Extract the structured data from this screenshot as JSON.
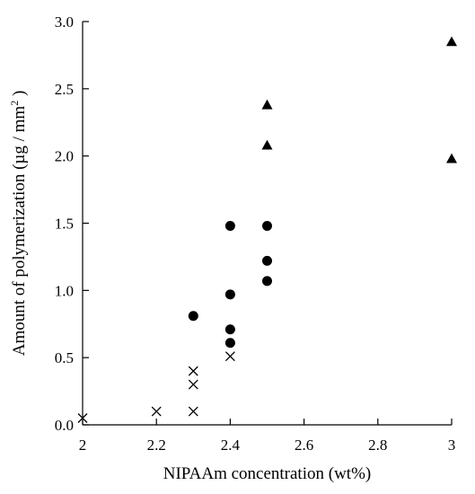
{
  "chart_data": {
    "type": "scatter",
    "title": "",
    "xlabel": "NIPAAm concentration (wt%)",
    "ylabel_main": "Amount of polymerization (µg / mm",
    "ylabel_sup": "2",
    "ylabel_end": " )",
    "xlim": [
      2,
      3
    ],
    "ylim": [
      0,
      3
    ],
    "x_ticks": [
      2,
      2.2,
      2.4,
      2.6,
      2.8,
      3
    ],
    "x_tick_labels": [
      "2",
      "2.2",
      "2.4",
      "2.6",
      "2.8",
      "3"
    ],
    "y_ticks": [
      0,
      0.5,
      1,
      1.5,
      2,
      2.5,
      3
    ],
    "y_tick_labels": [
      "0.0",
      "0.5",
      "1.0",
      "1.5",
      "2.0",
      "2.5",
      "3.0"
    ],
    "grid": false,
    "legend": "none",
    "series": [
      {
        "marker": "cross",
        "color": "#000000",
        "points": [
          {
            "x": 2.0,
            "y": 0.05
          },
          {
            "x": 2.2,
            "y": 0.1
          },
          {
            "x": 2.3,
            "y": 0.1
          },
          {
            "x": 2.3,
            "y": 0.3
          },
          {
            "x": 2.3,
            "y": 0.4
          },
          {
            "x": 2.4,
            "y": 0.51
          }
        ]
      },
      {
        "marker": "circle",
        "color": "#000000",
        "points": [
          {
            "x": 2.3,
            "y": 0.81
          },
          {
            "x": 2.4,
            "y": 0.61
          },
          {
            "x": 2.4,
            "y": 0.71
          },
          {
            "x": 2.4,
            "y": 0.97
          },
          {
            "x": 2.4,
            "y": 1.48
          },
          {
            "x": 2.5,
            "y": 1.07
          },
          {
            "x": 2.5,
            "y": 1.22
          },
          {
            "x": 2.5,
            "y": 1.48
          }
        ]
      },
      {
        "marker": "triangle",
        "color": "#000000",
        "points": [
          {
            "x": 2.5,
            "y": 2.08
          },
          {
            "x": 2.5,
            "y": 2.38
          },
          {
            "x": 3.0,
            "y": 1.98
          },
          {
            "x": 3.0,
            "y": 2.85
          }
        ]
      }
    ]
  }
}
